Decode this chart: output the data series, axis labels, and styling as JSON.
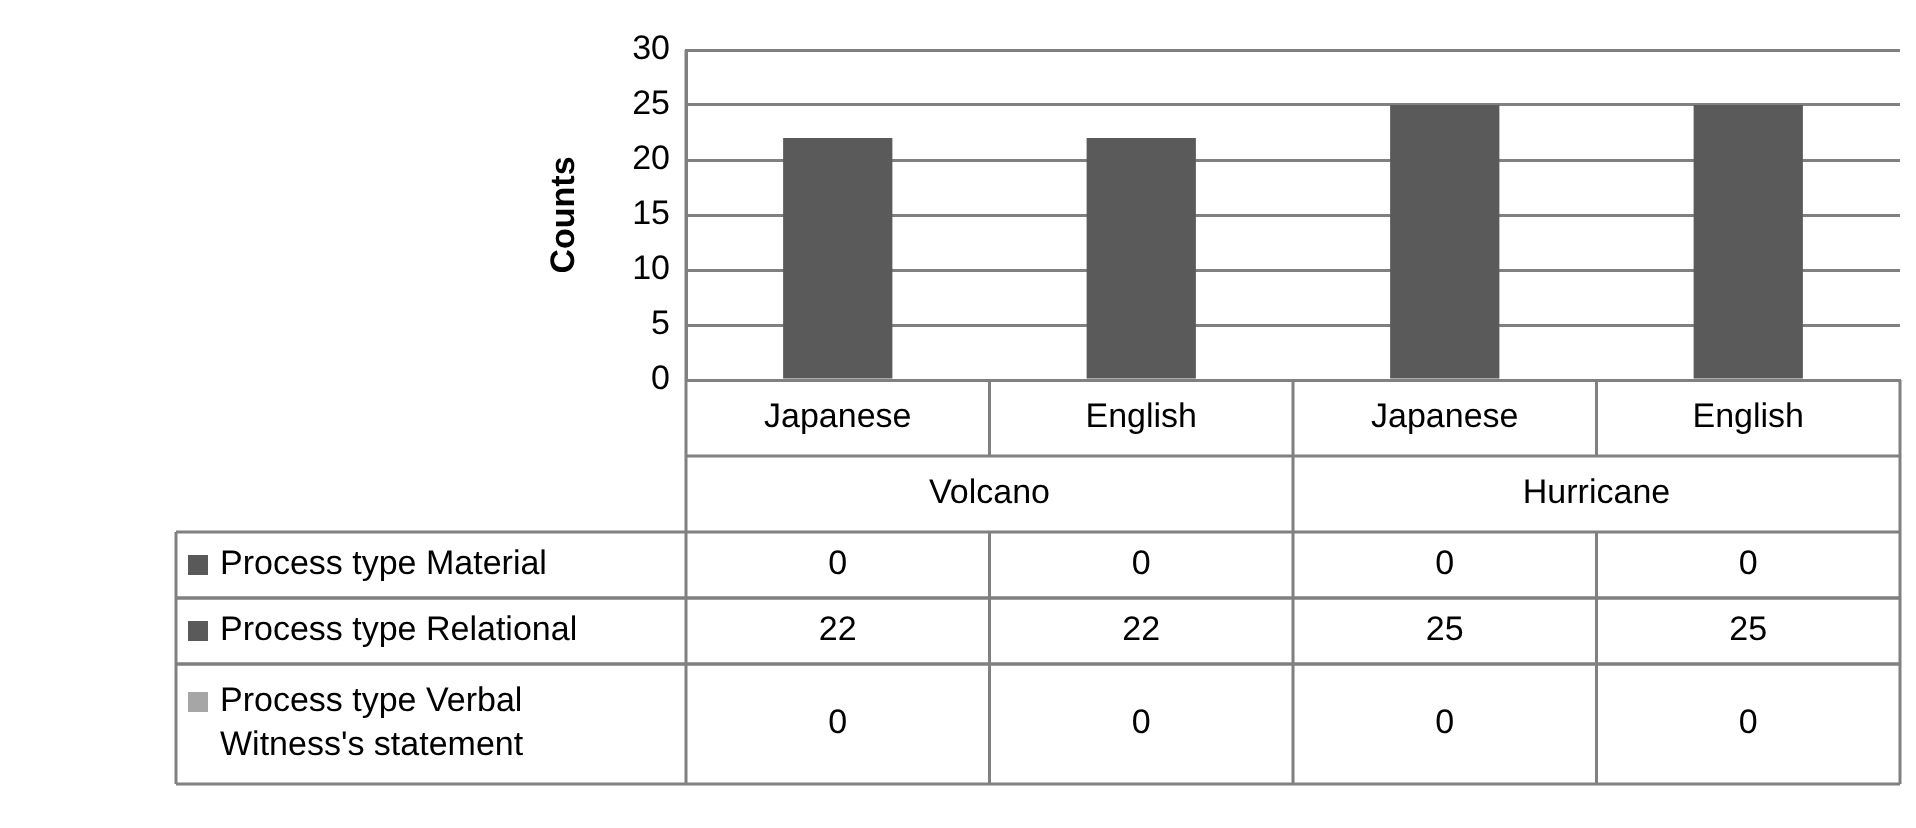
{
  "chart_data": {
    "type": "bar",
    "ylabel": "Counts",
    "categories": [
      "Japanese",
      "English",
      "Japanese",
      "English"
    ],
    "annotations": [
      "Volcano",
      "Hurricane"
    ],
    "series": [
      {
        "name": "Process type Material",
        "color": "#595959",
        "values": [
          0,
          0,
          0,
          0
        ]
      },
      {
        "name": "Process type Relational",
        "color": "#5a5a5a",
        "values": [
          22,
          22,
          25,
          25
        ]
      },
      {
        "name": "Process type Verbal Witness's statement",
        "color": "#a6a6a6",
        "values": [
          0,
          0,
          0,
          0
        ]
      }
    ],
    "ylim": [
      0,
      30
    ],
    "yticks": [
      0,
      5,
      10,
      15,
      20,
      25,
      30
    ],
    "grid": "y",
    "legend": "bottom",
    "data_labels": true
  }
}
